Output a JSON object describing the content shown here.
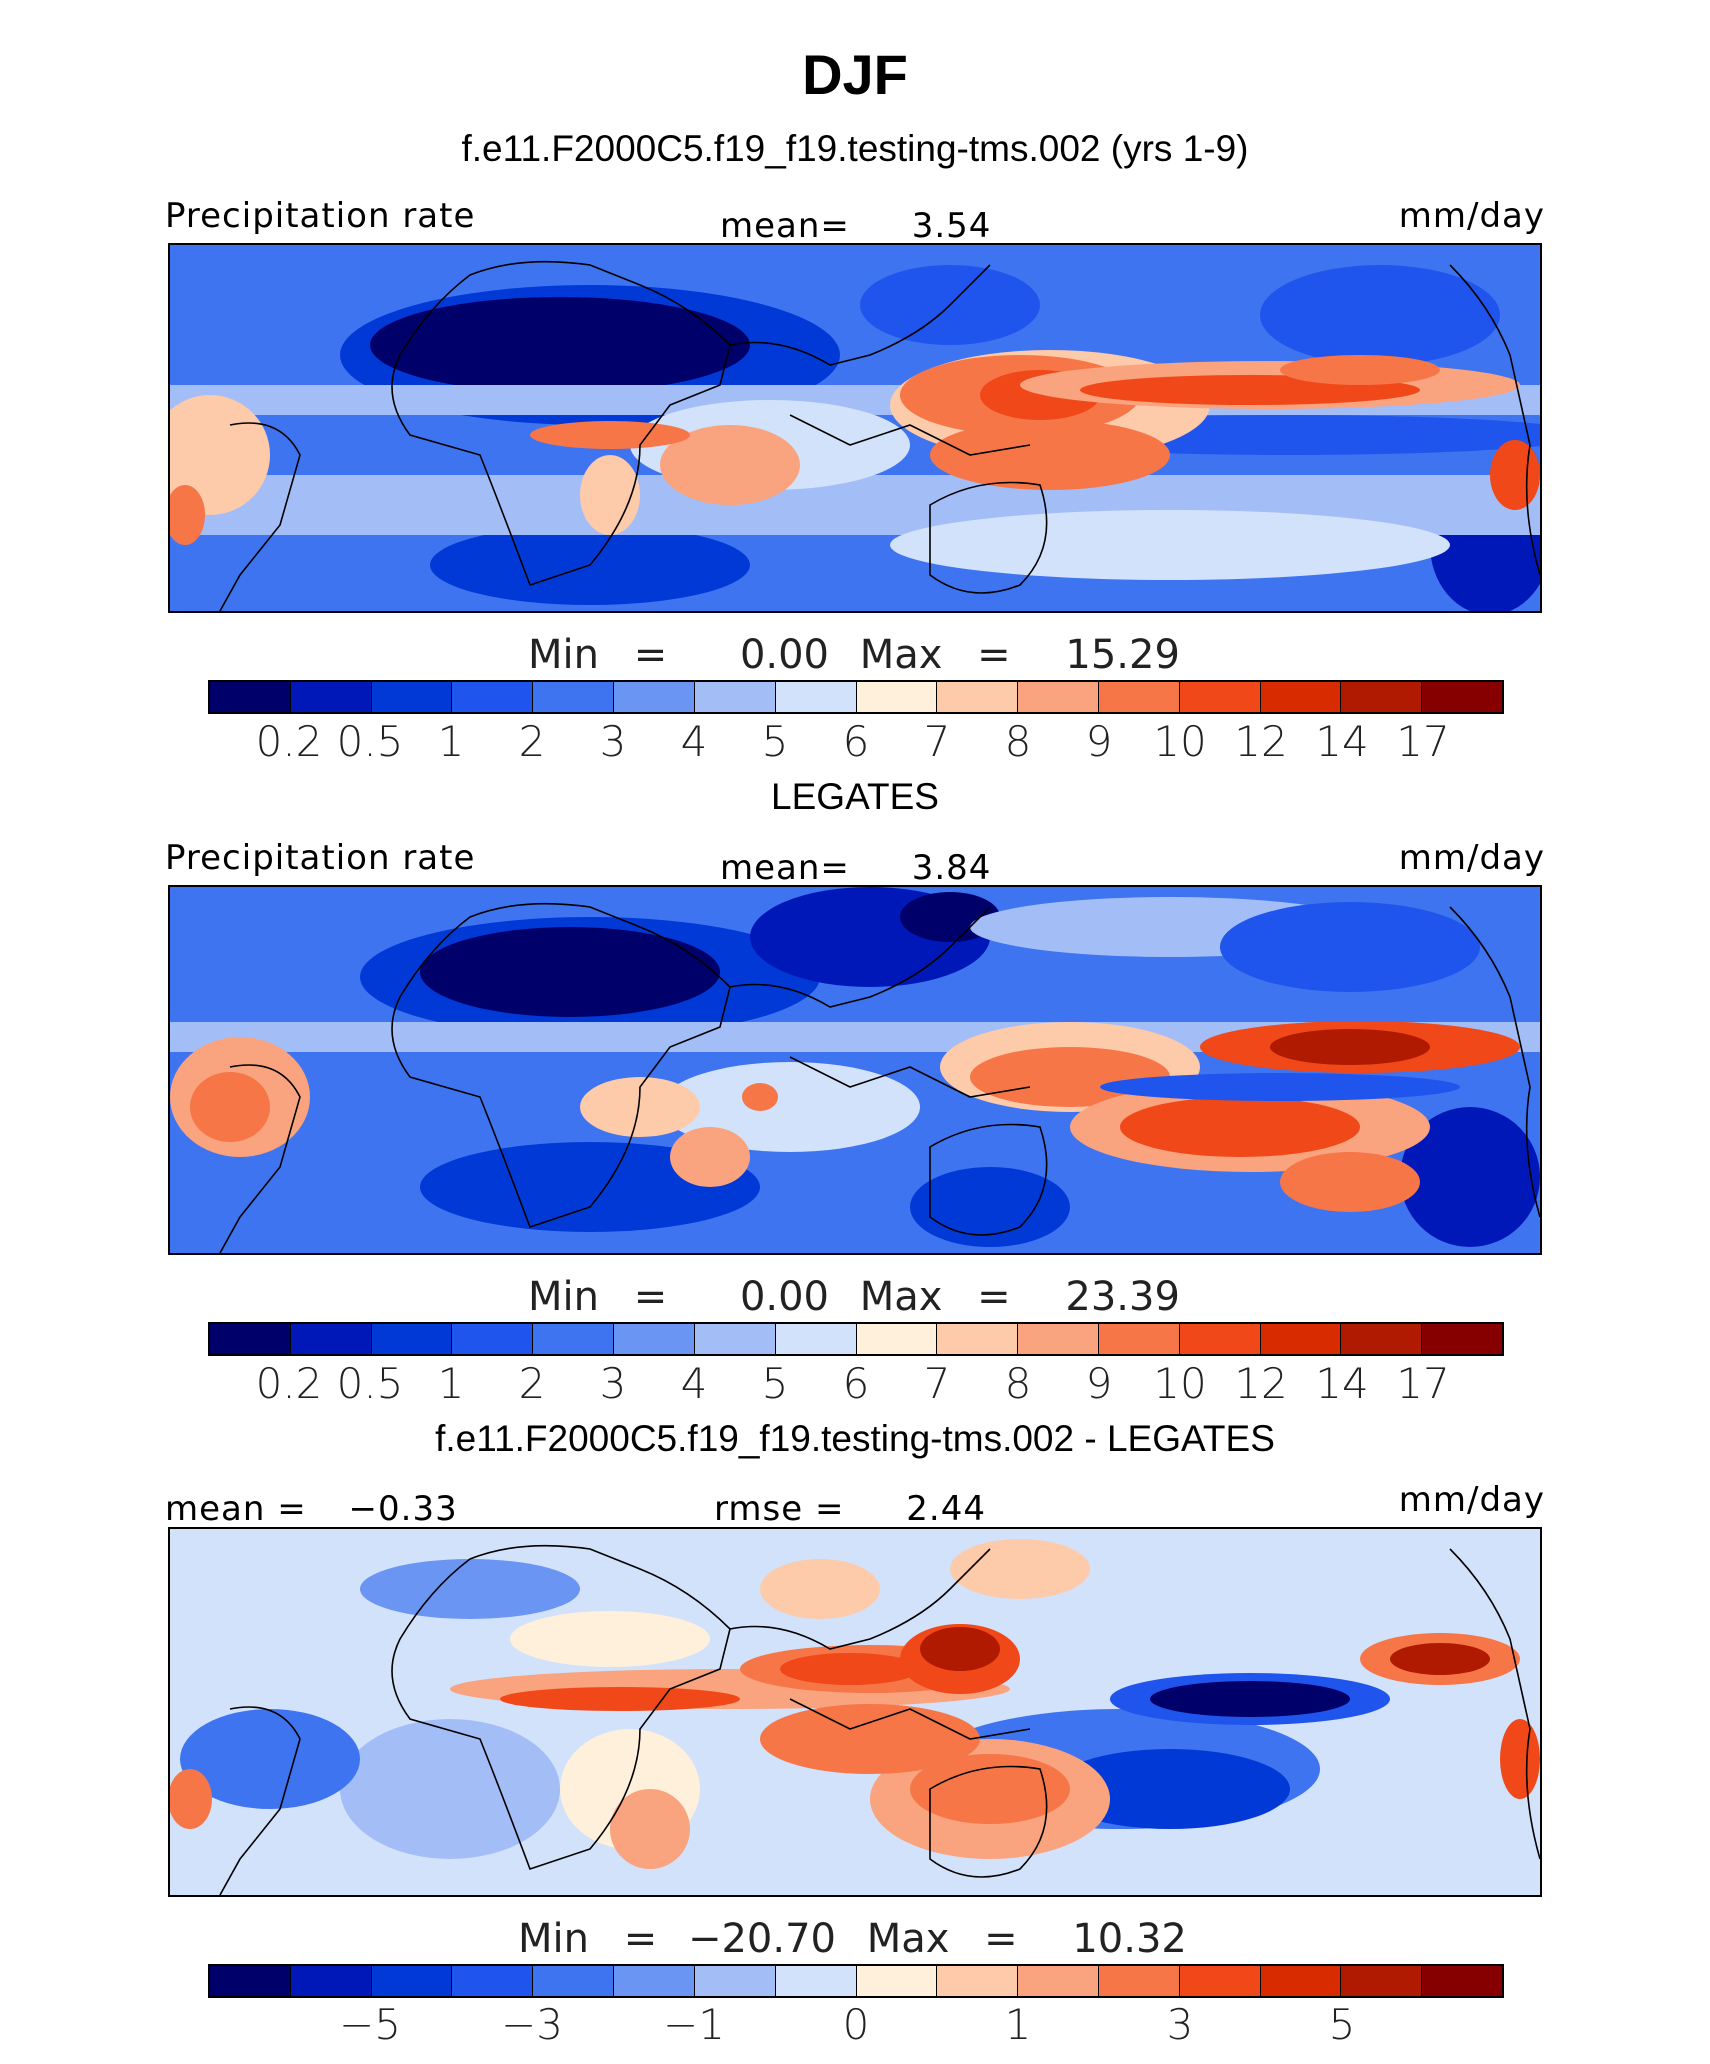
{
  "figure": {
    "title": "DJF",
    "colors": [
      "#00006b",
      "#0018b8",
      "#0039d6",
      "#1f55ec",
      "#3f74f0",
      "#6a95f2",
      "#a3bef7",
      "#d2e2fb",
      "#fff0dc",
      "#fdcaaa",
      "#f9a37f",
      "#f67648",
      "#f04818",
      "#d92b00",
      "#b01a00",
      "#860000"
    ]
  },
  "panel1": {
    "subtitle": "f.e11.F2000C5.f19_f19.testing-tms.002 (yrs 1-9)",
    "left_label": "Precipitation rate",
    "mid_label": "mean=",
    "mid_value": "3.54",
    "units": "mm/day",
    "min_label": "Min",
    "min_value": "0.00",
    "max_label": "Max",
    "max_value": "15.29",
    "ticks": [
      "0.2",
      "0.5",
      "1",
      "2",
      "3",
      "4",
      "5",
      "6",
      "7",
      "8",
      "9",
      "10",
      "12",
      "14",
      "17"
    ]
  },
  "panel2": {
    "subtitle": "LEGATES",
    "left_label": "Precipitation rate",
    "mid_label": "mean=",
    "mid_value": "3.84",
    "units": "mm/day",
    "min_label": "Min",
    "min_value": "0.00",
    "max_label": "Max",
    "max_value": "23.39",
    "ticks": [
      "0.2",
      "0.5",
      "1",
      "2",
      "3",
      "4",
      "5",
      "6",
      "7",
      "8",
      "9",
      "10",
      "12",
      "14",
      "17"
    ]
  },
  "panel3": {
    "subtitle": "f.e11.F2000C5.f19_f19.testing-tms.002 - LEGATES",
    "left_label": "mean =",
    "left_value": "−0.33",
    "mid_label": "rmse =",
    "mid_value": "2.44",
    "units": "mm/day",
    "min_label": "Min",
    "min_value": "−20.70",
    "max_label": "Max",
    "max_value": "10.32",
    "ticks": [
      "−5",
      "−3",
      "−1",
      "0",
      "1",
      "3",
      "5"
    ]
  }
}
